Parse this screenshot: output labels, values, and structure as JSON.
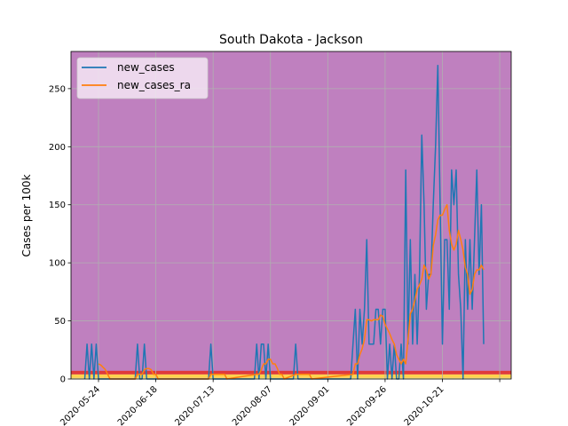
{
  "chart_data": {
    "type": "line",
    "title": "South Dakota - Jackson",
    "xlabel": "",
    "ylabel": "Cases per 100k",
    "ylim": [
      0,
      282
    ],
    "xlim": [
      "2020-05-12",
      "2020-11-20"
    ],
    "grid": true,
    "legend_position": "top-left",
    "background_color": "#bf80bf",
    "x_ticks": [
      "2020-05-24",
      "2020-06-18",
      "2020-07-13",
      "2020-08-07",
      "2020-09-01",
      "2020-09-26",
      "2020-10-21"
    ],
    "y_ticks": [
      0,
      50,
      100,
      150,
      200,
      250
    ],
    "bands": [
      {
        "from": 0,
        "to": 1,
        "color": "#ffff99"
      },
      {
        "from": 1,
        "to": 4,
        "color": "#ffd24d"
      },
      {
        "from": 4,
        "to": 7,
        "color": "#e03a3a"
      }
    ],
    "series": [
      {
        "name": "new_cases",
        "color": "#1f77b4",
        "points": [
          [
            "2020-05-18",
            0
          ],
          [
            "2020-05-19",
            30
          ],
          [
            "2020-05-20",
            0
          ],
          [
            "2020-05-21",
            30
          ],
          [
            "2020-05-22",
            0
          ],
          [
            "2020-05-23",
            30
          ],
          [
            "2020-05-24",
            0
          ],
          [
            "2020-06-01",
            0
          ],
          [
            "2020-06-02",
            0
          ],
          [
            "2020-06-09",
            0
          ],
          [
            "2020-06-10",
            30
          ],
          [
            "2020-06-11",
            0
          ],
          [
            "2020-06-12",
            0
          ],
          [
            "2020-06-13",
            30
          ],
          [
            "2020-06-14",
            0
          ],
          [
            "2020-06-22",
            0
          ],
          [
            "2020-07-11",
            0
          ],
          [
            "2020-07-12",
            30
          ],
          [
            "2020-07-13",
            0
          ],
          [
            "2020-07-31",
            0
          ],
          [
            "2020-08-01",
            30
          ],
          [
            "2020-08-02",
            0
          ],
          [
            "2020-08-03",
            30
          ],
          [
            "2020-08-04",
            30
          ],
          [
            "2020-08-05",
            0
          ],
          [
            "2020-08-06",
            30
          ],
          [
            "2020-08-07",
            0
          ],
          [
            "2020-08-17",
            0
          ],
          [
            "2020-08-18",
            30
          ],
          [
            "2020-08-19",
            0
          ],
          [
            "2020-09-01",
            0
          ],
          [
            "2020-09-11",
            0
          ],
          [
            "2020-09-12",
            30
          ],
          [
            "2020-09-13",
            60
          ],
          [
            "2020-09-14",
            0
          ],
          [
            "2020-09-15",
            60
          ],
          [
            "2020-09-16",
            30
          ],
          [
            "2020-09-17",
            60
          ],
          [
            "2020-09-18",
            120
          ],
          [
            "2020-09-19",
            30
          ],
          [
            "2020-09-20",
            30
          ],
          [
            "2020-09-21",
            30
          ],
          [
            "2020-09-22",
            60
          ],
          [
            "2020-09-23",
            60
          ],
          [
            "2020-09-24",
            30
          ],
          [
            "2020-09-25",
            60
          ],
          [
            "2020-09-26",
            60
          ],
          [
            "2020-09-27",
            0
          ],
          [
            "2020-09-28",
            30
          ],
          [
            "2020-09-29",
            0
          ],
          [
            "2020-09-30",
            30
          ],
          [
            "2020-10-01",
            0
          ],
          [
            "2020-10-02",
            0
          ],
          [
            "2020-10-03",
            30
          ],
          [
            "2020-10-04",
            0
          ],
          [
            "2020-10-05",
            180
          ],
          [
            "2020-10-06",
            30
          ],
          [
            "2020-10-07",
            120
          ],
          [
            "2020-10-08",
            30
          ],
          [
            "2020-10-09",
            90
          ],
          [
            "2020-10-10",
            30
          ],
          [
            "2020-10-11",
            90
          ],
          [
            "2020-10-12",
            210
          ],
          [
            "2020-10-13",
            150
          ],
          [
            "2020-10-14",
            60
          ],
          [
            "2020-10-15",
            90
          ],
          [
            "2020-10-16",
            90
          ],
          [
            "2020-10-17",
            150
          ],
          [
            "2020-10-18",
            200
          ],
          [
            "2020-10-19",
            270
          ],
          [
            "2020-10-20",
            150
          ],
          [
            "2020-10-21",
            30
          ],
          [
            "2020-10-22",
            120
          ],
          [
            "2020-10-23",
            120
          ],
          [
            "2020-10-24",
            60
          ],
          [
            "2020-10-25",
            180
          ],
          [
            "2020-10-26",
            150
          ],
          [
            "2020-10-27",
            180
          ],
          [
            "2020-10-28",
            90
          ],
          [
            "2020-10-29",
            60
          ],
          [
            "2020-10-30",
            0
          ],
          [
            "2020-10-31",
            120
          ],
          [
            "2020-11-01",
            60
          ],
          [
            "2020-11-02",
            120
          ],
          [
            "2020-11-03",
            60
          ],
          [
            "2020-11-04",
            120
          ],
          [
            "2020-11-05",
            180
          ],
          [
            "2020-11-06",
            90
          ],
          [
            "2020-11-07",
            150
          ],
          [
            "2020-11-08",
            30
          ]
        ]
      },
      {
        "name": "new_cases_ra",
        "color": "#ff7f0e",
        "points": [
          [
            "2020-05-24",
            13
          ],
          [
            "2020-05-25",
            12
          ],
          [
            "2020-05-26",
            10
          ],
          [
            "2020-05-27",
            8
          ],
          [
            "2020-05-28",
            4
          ],
          [
            "2020-05-29",
            0
          ],
          [
            "2020-06-09",
            0
          ],
          [
            "2020-06-10",
            4
          ],
          [
            "2020-06-11",
            4
          ],
          [
            "2020-06-12",
            4
          ],
          [
            "2020-06-13",
            8
          ],
          [
            "2020-06-14",
            9
          ],
          [
            "2020-06-15",
            9
          ],
          [
            "2020-06-16",
            8
          ],
          [
            "2020-06-17",
            4
          ],
          [
            "2020-06-18",
            4
          ],
          [
            "2020-06-19",
            0
          ],
          [
            "2020-07-11",
            0
          ],
          [
            "2020-07-12",
            4
          ],
          [
            "2020-07-13",
            4
          ],
          [
            "2020-07-18",
            4
          ],
          [
            "2020-07-19",
            0
          ],
          [
            "2020-08-01",
            4
          ],
          [
            "2020-08-02",
            4
          ],
          [
            "2020-08-03",
            8
          ],
          [
            "2020-08-04",
            13
          ],
          [
            "2020-08-05",
            13
          ],
          [
            "2020-08-06",
            17
          ],
          [
            "2020-08-07",
            17
          ],
          [
            "2020-08-08",
            13
          ],
          [
            "2020-08-09",
            13
          ],
          [
            "2020-08-10",
            9
          ],
          [
            "2020-08-11",
            4
          ],
          [
            "2020-08-12",
            4
          ],
          [
            "2020-08-13",
            0
          ],
          [
            "2020-08-18",
            4
          ],
          [
            "2020-08-19",
            4
          ],
          [
            "2020-08-24",
            4
          ],
          [
            "2020-08-25",
            0
          ],
          [
            "2020-09-12",
            4
          ],
          [
            "2020-09-13",
            13
          ],
          [
            "2020-09-14",
            13
          ],
          [
            "2020-09-15",
            21
          ],
          [
            "2020-09-16",
            26
          ],
          [
            "2020-09-17",
            34
          ],
          [
            "2020-09-18",
            51
          ],
          [
            "2020-09-19",
            51
          ],
          [
            "2020-09-20",
            50
          ],
          [
            "2020-09-21",
            51
          ],
          [
            "2020-09-22",
            51
          ],
          [
            "2020-09-23",
            51
          ],
          [
            "2020-09-24",
            55
          ],
          [
            "2020-09-25",
            54
          ],
          [
            "2020-09-26",
            47
          ],
          [
            "2020-09-27",
            43
          ],
          [
            "2020-09-28",
            39
          ],
          [
            "2020-09-29",
            34
          ],
          [
            "2020-09-30",
            30
          ],
          [
            "2020-10-01",
            21
          ],
          [
            "2020-10-02",
            17
          ],
          [
            "2020-10-03",
            13
          ],
          [
            "2020-10-04",
            17
          ],
          [
            "2020-10-05",
            13
          ],
          [
            "2020-10-06",
            34
          ],
          [
            "2020-10-07",
            56
          ],
          [
            "2020-10-08",
            60
          ],
          [
            "2020-10-09",
            68
          ],
          [
            "2020-10-10",
            77
          ],
          [
            "2020-10-11",
            81
          ],
          [
            "2020-10-12",
            86
          ],
          [
            "2020-10-13",
            98
          ],
          [
            "2020-10-14",
            94
          ],
          [
            "2020-10-15",
            86
          ],
          [
            "2020-10-16",
            90
          ],
          [
            "2020-10-17",
            115
          ],
          [
            "2020-10-18",
            124
          ],
          [
            "2020-10-19",
            137
          ],
          [
            "2020-10-20",
            141
          ],
          [
            "2020-10-21",
            141
          ],
          [
            "2020-10-22",
            146
          ],
          [
            "2020-10-23",
            150
          ],
          [
            "2020-10-24",
            128
          ],
          [
            "2020-10-25",
            116
          ],
          [
            "2020-10-26",
            111
          ],
          [
            "2020-10-27",
            116
          ],
          [
            "2020-10-28",
            128
          ],
          [
            "2020-10-29",
            120
          ],
          [
            "2020-10-30",
            111
          ],
          [
            "2020-10-31",
            96
          ],
          [
            "2020-11-01",
            90
          ],
          [
            "2020-11-02",
            73
          ],
          [
            "2020-11-03",
            77
          ],
          [
            "2020-11-04",
            90
          ],
          [
            "2020-11-05",
            94
          ],
          [
            "2020-11-06",
            94
          ],
          [
            "2020-11-07",
            98
          ],
          [
            "2020-11-08",
            94
          ]
        ]
      }
    ]
  }
}
